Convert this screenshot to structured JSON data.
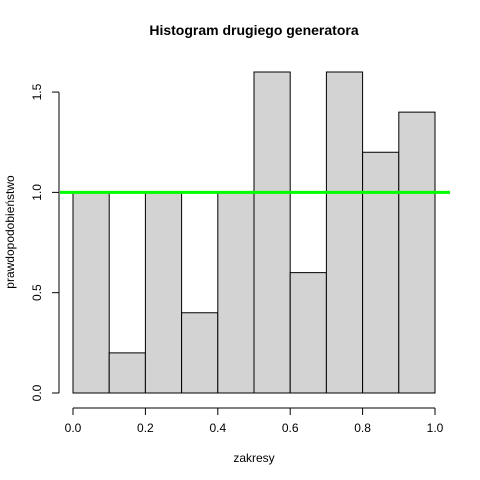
{
  "chart_data": {
    "type": "bar",
    "title": "Histogram drugiego generatora",
    "xlabel": "zakresy",
    "ylabel": "prawdopodobieństwo",
    "bins": [
      {
        "from": 0.0,
        "to": 0.1,
        "value": 1.0
      },
      {
        "from": 0.1,
        "to": 0.2,
        "value": 0.2
      },
      {
        "from": 0.2,
        "to": 0.3,
        "value": 1.0
      },
      {
        "from": 0.3,
        "to": 0.4,
        "value": 0.4
      },
      {
        "from": 0.4,
        "to": 0.5,
        "value": 1.0
      },
      {
        "from": 0.5,
        "to": 0.6,
        "value": 1.6
      },
      {
        "from": 0.6,
        "to": 0.7,
        "value": 0.6
      },
      {
        "from": 0.7,
        "to": 0.8,
        "value": 1.6
      },
      {
        "from": 0.8,
        "to": 0.9,
        "value": 1.2
      },
      {
        "from": 0.9,
        "to": 1.0,
        "value": 1.4
      }
    ],
    "xlim": [
      0.0,
      1.0
    ],
    "ylim": [
      0.0,
      1.6
    ],
    "x_ticks": [
      "0.0",
      "0.2",
      "0.4",
      "0.6",
      "0.8",
      "1.0"
    ],
    "y_ticks": [
      "0.0",
      "0.5",
      "1.0",
      "1.5"
    ],
    "reference_line": {
      "y": 1.0,
      "color": "#00ff00"
    },
    "bar_color": "#d3d3d3",
    "grid": false,
    "legend": "none"
  }
}
